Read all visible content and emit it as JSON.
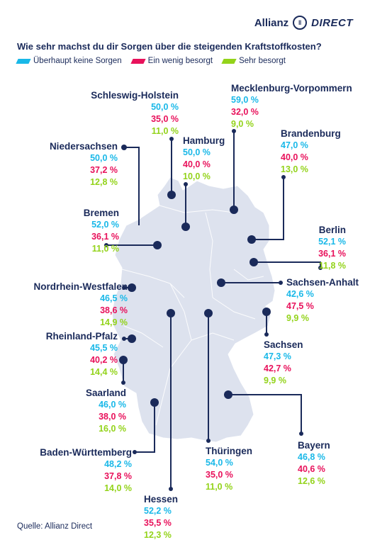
{
  "brand": {
    "name": "Allianz",
    "product": "DIRECT"
  },
  "title": "Wie sehr machst du dir Sorgen über die steigenden Kraftstoffkosten?",
  "legend": [
    {
      "label": "Überhaupt keine Sorgen",
      "color": "#19b8e8"
    },
    {
      "label": "Ein wenig besorgt",
      "color": "#e8115b"
    },
    {
      "label": "Sehr besorgt",
      "color": "#93d31a"
    }
  ],
  "states": [
    {
      "name": "Schleswig-Holstein",
      "v1": "50,0 %",
      "v2": "35,0 %",
      "v3": "11,0 %"
    },
    {
      "name": "Mecklenburg-Vorpommern",
      "v1": "59,0 %",
      "v2": "32,0 %",
      "v3": "9,0 %"
    },
    {
      "name": "Hamburg",
      "v1": "50,0 %",
      "v2": "40,0 %",
      "v3": "10,0 %"
    },
    {
      "name": "Brandenburg",
      "v1": "47,0 %",
      "v2": "40,0 %",
      "v3": "13,0 %"
    },
    {
      "name": "Niedersachsen",
      "v1": "50,0 %",
      "v2": "37,2 %",
      "v3": "12,8 %"
    },
    {
      "name": "Bremen",
      "v1": "52,0 %",
      "v2": "36,1 %",
      "v3": "11,0 %"
    },
    {
      "name": "Berlin",
      "v1": "52,1 %",
      "v2": "36,1 %",
      "v3": "11,8 %"
    },
    {
      "name": "Nordrhein-Westfalen",
      "v1": "46,5 %",
      "v2": "38,6 %",
      "v3": "14,9 %"
    },
    {
      "name": "Sachsen-Anhalt",
      "v1": "42,6 %",
      "v2": "47,5 %",
      "v3": "9,9 %"
    },
    {
      "name": "Rheinland-Pfalz",
      "v1": "45,5 %",
      "v2": "40,2 %",
      "v3": "14,4 %"
    },
    {
      "name": "Sachsen",
      "v1": "47,3 %",
      "v2": "42,7 %",
      "v3": "9,9 %"
    },
    {
      "name": "Saarland",
      "v1": "46,0 %",
      "v2": "38,0 %",
      "v3": "16,0 %"
    },
    {
      "name": "Baden-Württemberg",
      "v1": "48,2 %",
      "v2": "37,8 %",
      "v3": "14,0 %"
    },
    {
      "name": "Thüringen",
      "v1": "54,0 %",
      "v2": "35,0 %",
      "v3": "11,0 %"
    },
    {
      "name": "Bayern",
      "v1": "46,8 %",
      "v2": "40,6 %",
      "v3": "12,6 %"
    },
    {
      "name": "Hessen",
      "v1": "52,2 %",
      "v2": "35,5 %",
      "v3": "12,3 %"
    }
  ],
  "source": "Quelle: Allianz Direct"
}
